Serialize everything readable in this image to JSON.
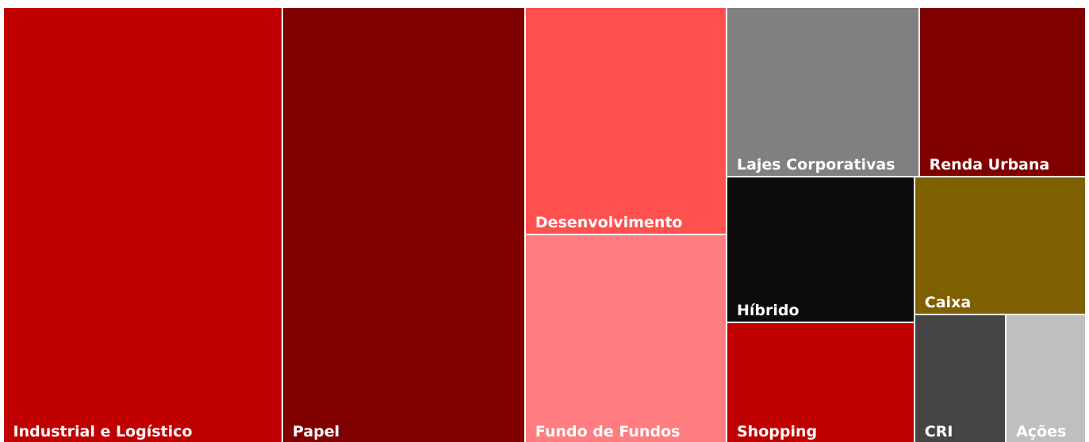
{
  "chart_data": {
    "type": "treemap",
    "categories": [
      "Industrial e Logístico",
      "Papel",
      "Desenvolvimento",
      "Fundo de Fundos",
      "Lajes Corporativas",
      "Renda Urbana",
      "Híbrido",
      "Shopping",
      "Caixa",
      "CRI",
      "Ações"
    ],
    "values": [
      25.8,
      22.4,
      9.7,
      8.9,
      6.9,
      6.0,
      5.8,
      4.8,
      5.0,
      2.5,
      2.2
    ],
    "colors": [
      "#c00000",
      "#800000",
      "#ff5050",
      "#ff7c80",
      "#808080",
      "#800000",
      "#0c0c0c",
      "#c00000",
      "#7f6000",
      "#454545",
      "#bfbfbf"
    ]
  }
}
